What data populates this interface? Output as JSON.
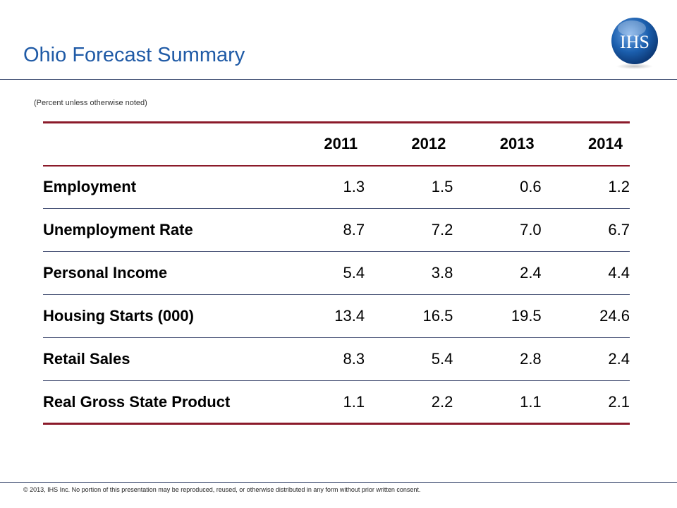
{
  "slide": {
    "title": "Ohio Forecast Summary",
    "subtitle": "(Percent unless otherwise noted)",
    "logo_text": "IHS",
    "footer": "© 2013, IHS Inc. No portion of this presentation may be reproduced, reused, or otherwise distributed in any form without prior written consent."
  },
  "table": {
    "headers": [
      "",
      "2011",
      "2012",
      "2013",
      "2014"
    ],
    "rows": [
      {
        "label": "Employment",
        "values": [
          "1.3",
          "1.5",
          "0.6",
          "1.2"
        ]
      },
      {
        "label": "Unemployment Rate",
        "values": [
          "8.7",
          "7.2",
          "7.0",
          "6.7"
        ]
      },
      {
        "label": "Personal Income",
        "values": [
          "5.4",
          "3.8",
          "2.4",
          "4.4"
        ]
      },
      {
        "label": "Housing Starts (000)",
        "values": [
          "13.4",
          "16.5",
          "19.5",
          "24.6"
        ]
      },
      {
        "label": "Retail Sales",
        "values": [
          "8.3",
          "5.4",
          "2.8",
          "2.4"
        ]
      },
      {
        "label": "Real Gross State Product",
        "values": [
          "1.1",
          "2.2",
          "1.1",
          "2.1"
        ]
      }
    ]
  },
  "colors": {
    "title": "#1f5aa6",
    "accent_rule": "#8b1a2a",
    "row_rule": "#4a5578",
    "logo_blue": "#1b5fae"
  }
}
